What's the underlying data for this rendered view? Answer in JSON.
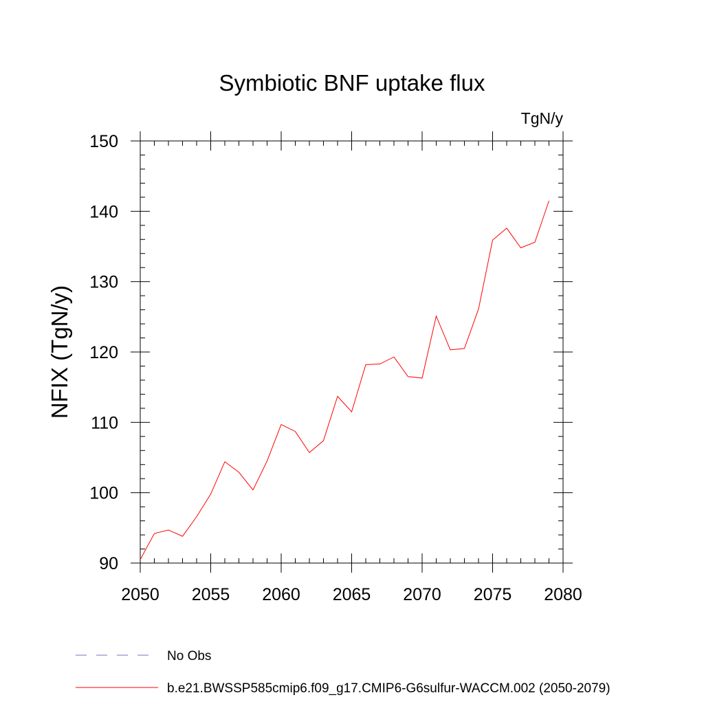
{
  "chart_data": {
    "type": "line",
    "title": "Symbiotic BNF uptake flux",
    "units": "TgN/y",
    "ylabel": "NFIX  (TgN/y)",
    "xlabel": "",
    "xlim": [
      2050,
      2080
    ],
    "ylim": [
      90,
      150
    ],
    "xticks": [
      2050,
      2055,
      2060,
      2065,
      2070,
      2075,
      2080
    ],
    "yticks": [
      90,
      100,
      110,
      120,
      130,
      140,
      150
    ],
    "grid": false,
    "legend_placement": "bottom",
    "series": [
      {
        "name": "b.e21.BWSSP585cmip6.f09_g17.CMIP6-G6sulfur-WACCM.002 (2050-2079)",
        "color": "#ff0000",
        "style": "solid",
        "x": [
          2050,
          2051,
          2052,
          2053,
          2054,
          2055,
          2056,
          2057,
          2058,
          2059,
          2060,
          2061,
          2062,
          2063,
          2064,
          2065,
          2066,
          2067,
          2068,
          2069,
          2070,
          2071,
          2072,
          2073,
          2074,
          2075,
          2076,
          2077,
          2078,
          2079
        ],
        "values": [
          90.5,
          94.2,
          94.7,
          93.8,
          96.6,
          99.8,
          104.4,
          102.9,
          100.4,
          104.5,
          109.7,
          108.7,
          105.7,
          107.4,
          113.7,
          111.5,
          118.2,
          118.3,
          119.3,
          116.5,
          116.3,
          125.1,
          120.3,
          120.5,
          126.1,
          135.9,
          137.6,
          134.8,
          135.6,
          141.5
        ]
      }
    ],
    "legend": [
      {
        "label": "No Obs",
        "color": "#7a6fb8",
        "style": "dashed"
      },
      {
        "label": "b.e21.BWSSP585cmip6.f09_g17.CMIP6-G6sulfur-WACCM.002 (2050-2079)",
        "color": "#ff0000",
        "style": "solid"
      }
    ]
  }
}
